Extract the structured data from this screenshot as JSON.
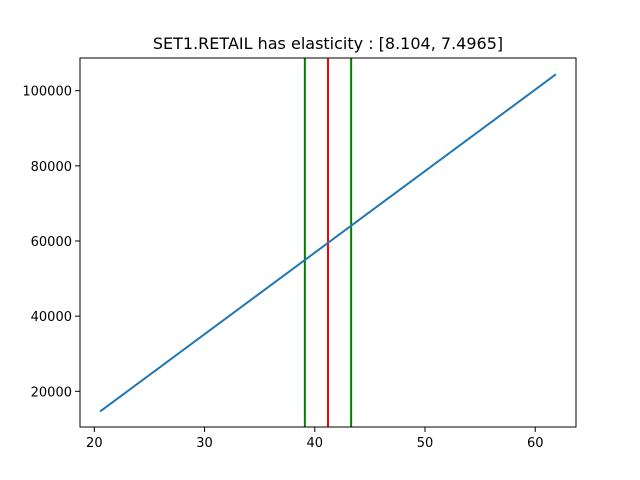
{
  "chart_data": {
    "type": "line",
    "title": "SET1.RETAIL has elasticity : [8.104, 7.4965]",
    "xlabel": "",
    "ylabel": "",
    "xlim": [
      18.7,
      63.7
    ],
    "ylim": [
      10500,
      108700
    ],
    "x_ticks": [
      20,
      30,
      40,
      50,
      60
    ],
    "y_ticks": [
      20000,
      40000,
      60000,
      80000,
      100000
    ],
    "grid": false,
    "series": [
      {
        "color": "#1f77b4",
        "x": [
          20.6,
          61.8
        ],
        "y": [
          14800,
          104200
        ]
      }
    ],
    "vertical_lines": [
      {
        "x": 39.1,
        "color": "#008000"
      },
      {
        "x": 41.2,
        "color": "#ff0000"
      },
      {
        "x": 43.3,
        "color": "#008000"
      }
    ]
  }
}
